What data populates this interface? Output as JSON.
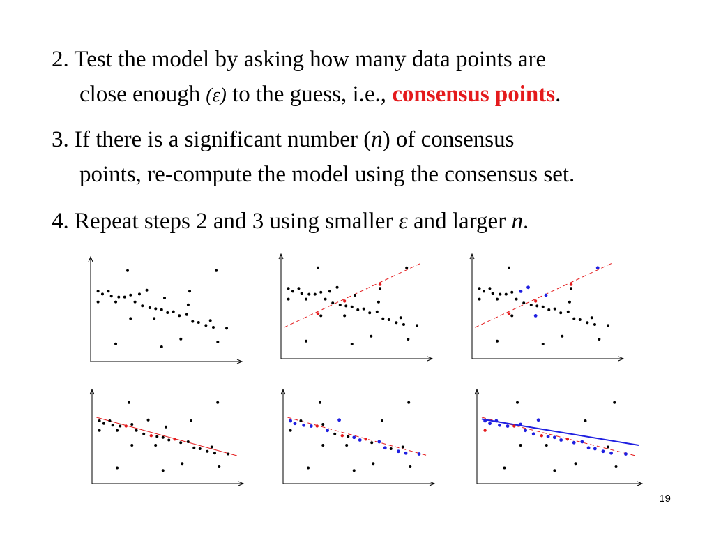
{
  "steps": [
    {
      "line1": "2. Test the model by asking how many data  points  are",
      "line2_a": "close enough",
      "line2_eps": "(ε)",
      "line2_b": " to the guess, i.e., ",
      "line2_red": "consensus points",
      "line2_c": "."
    },
    {
      "line1_a": "3. If there is a significant number (",
      "line1_n": "n",
      "line1_b": ") of consensus",
      "line2": "points, re-compute the model using the consensus set."
    },
    {
      "line1_a": "4. Repeat steps 2 and 3 using smaller ",
      "line1_eps": "ε",
      "line1_b": " and larger ",
      "line1_n": "n",
      "line1_c": "."
    }
  ],
  "colors": {
    "black": "#000000",
    "consensus_red": "#e41a1c",
    "inlier_blue": "#1f1fe0"
  },
  "page_number": "19",
  "chart_data": [
    {
      "type": "scatter",
      "panel": "data only",
      "points": [
        [
          0.25,
          0.93
        ],
        [
          0.85,
          0.93
        ],
        [
          0.05,
          0.72
        ],
        [
          0.08,
          0.69
        ],
        [
          0.12,
          0.72
        ],
        [
          0.14,
          0.67
        ],
        [
          0.19,
          0.66
        ],
        [
          0.23,
          0.66
        ],
        [
          0.27,
          0.68
        ],
        [
          0.3,
          0.61
        ],
        [
          0.33,
          0.69
        ],
        [
          0.35,
          0.57
        ],
        [
          0.38,
          0.73
        ],
        [
          0.4,
          0.55
        ],
        [
          0.44,
          0.54
        ],
        [
          0.48,
          0.53
        ],
        [
          0.52,
          0.5
        ],
        [
          0.56,
          0.51
        ],
        [
          0.6,
          0.47
        ],
        [
          0.65,
          0.48
        ],
        [
          0.67,
          0.72
        ],
        [
          0.69,
          0.41
        ],
        [
          0.73,
          0.4
        ],
        [
          0.78,
          0.37
        ],
        [
          0.81,
          0.42
        ],
        [
          0.83,
          0.35
        ],
        [
          0.86,
          0.2
        ],
        [
          0.92,
          0.34
        ],
        [
          0.05,
          0.61
        ],
        [
          0.17,
          0.61
        ],
        [
          0.27,
          0.44
        ],
        [
          0.43,
          0.44
        ],
        [
          0.5,
          0.65
        ],
        [
          0.66,
          0.58
        ],
        [
          0.61,
          0.23
        ],
        [
          0.17,
          0.18
        ],
        [
          0.48,
          0.15
        ]
      ],
      "lines": []
    },
    {
      "type": "scatter",
      "panel": "random line guess",
      "points": [
        [
          0.25,
          0.93
        ],
        [
          0.85,
          0.93
        ],
        [
          0.05,
          0.72
        ],
        [
          0.08,
          0.69
        ],
        [
          0.12,
          0.72
        ],
        [
          0.14,
          0.67
        ],
        [
          0.19,
          0.66
        ],
        [
          0.23,
          0.66
        ],
        [
          0.27,
          0.68
        ],
        [
          0.3,
          0.61
        ],
        [
          0.33,
          0.69
        ],
        [
          0.35,
          0.57
        ],
        [
          0.38,
          0.73
        ],
        [
          0.4,
          0.55
        ],
        [
          0.44,
          0.54
        ],
        [
          0.48,
          0.53
        ],
        [
          0.52,
          0.5
        ],
        [
          0.56,
          0.51
        ],
        [
          0.6,
          0.47
        ],
        [
          0.65,
          0.48
        ],
        [
          0.67,
          0.72
        ],
        [
          0.69,
          0.41
        ],
        [
          0.73,
          0.4
        ],
        [
          0.78,
          0.37
        ],
        [
          0.81,
          0.42
        ],
        [
          0.83,
          0.35
        ],
        [
          0.86,
          0.2
        ],
        [
          0.92,
          0.34
        ],
        [
          0.05,
          0.61
        ],
        [
          0.17,
          0.61
        ],
        [
          0.27,
          0.44
        ],
        [
          0.43,
          0.44
        ],
        [
          0.5,
          0.65
        ],
        [
          0.66,
          0.58
        ],
        [
          0.61,
          0.23
        ],
        [
          0.17,
          0.18
        ],
        [
          0.48,
          0.15
        ]
      ],
      "red_points": [
        [
          0.25,
          0.46
        ],
        [
          0.43,
          0.59
        ],
        [
          0.67,
          0.76
        ]
      ],
      "lines": [
        {
          "style": "red-dashed",
          "from": [
            0.02,
            0.32
          ],
          "to": [
            0.95,
            0.98
          ]
        }
      ]
    },
    {
      "type": "scatter",
      "panel": "consensus points highlighted",
      "points": [
        [
          0.25,
          0.93
        ],
        [
          0.05,
          0.72
        ],
        [
          0.08,
          0.69
        ],
        [
          0.12,
          0.72
        ],
        [
          0.14,
          0.67
        ],
        [
          0.19,
          0.66
        ],
        [
          0.23,
          0.66
        ],
        [
          0.27,
          0.68
        ],
        [
          0.3,
          0.61
        ],
        [
          0.35,
          0.57
        ],
        [
          0.4,
          0.55
        ],
        [
          0.44,
          0.54
        ],
        [
          0.48,
          0.53
        ],
        [
          0.52,
          0.5
        ],
        [
          0.56,
          0.51
        ],
        [
          0.6,
          0.47
        ],
        [
          0.65,
          0.48
        ],
        [
          0.67,
          0.72
        ],
        [
          0.69,
          0.41
        ],
        [
          0.73,
          0.4
        ],
        [
          0.78,
          0.37
        ],
        [
          0.81,
          0.42
        ],
        [
          0.83,
          0.35
        ],
        [
          0.86,
          0.2
        ],
        [
          0.92,
          0.34
        ],
        [
          0.05,
          0.61
        ],
        [
          0.17,
          0.61
        ],
        [
          0.27,
          0.44
        ],
        [
          0.66,
          0.58
        ],
        [
          0.61,
          0.23
        ],
        [
          0.17,
          0.18
        ],
        [
          0.48,
          0.15
        ]
      ],
      "red_points": [
        [
          0.25,
          0.46
        ],
        [
          0.43,
          0.59
        ],
        [
          0.67,
          0.76
        ]
      ],
      "blue_points": [
        [
          0.38,
          0.73
        ],
        [
          0.33,
          0.69
        ],
        [
          0.5,
          0.65
        ],
        [
          0.43,
          0.44
        ],
        [
          0.85,
          0.93
        ]
      ],
      "lines": [
        {
          "style": "red-dashed",
          "from": [
            0.02,
            0.32
          ],
          "to": [
            0.95,
            0.98
          ]
        }
      ]
    },
    {
      "type": "scatter",
      "panel": "re-fitted line guess",
      "points": [
        [
          0.25,
          0.93
        ],
        [
          0.85,
          0.93
        ],
        [
          0.05,
          0.72
        ],
        [
          0.08,
          0.69
        ],
        [
          0.12,
          0.72
        ],
        [
          0.14,
          0.67
        ],
        [
          0.19,
          0.66
        ],
        [
          0.27,
          0.68
        ],
        [
          0.3,
          0.61
        ],
        [
          0.35,
          0.57
        ],
        [
          0.38,
          0.73
        ],
        [
          0.44,
          0.54
        ],
        [
          0.48,
          0.53
        ],
        [
          0.52,
          0.5
        ],
        [
          0.6,
          0.47
        ],
        [
          0.65,
          0.48
        ],
        [
          0.67,
          0.72
        ],
        [
          0.69,
          0.41
        ],
        [
          0.73,
          0.4
        ],
        [
          0.78,
          0.37
        ],
        [
          0.81,
          0.42
        ],
        [
          0.83,
          0.35
        ],
        [
          0.86,
          0.2
        ],
        [
          0.92,
          0.34
        ],
        [
          0.05,
          0.61
        ],
        [
          0.17,
          0.61
        ],
        [
          0.27,
          0.44
        ],
        [
          0.43,
          0.44
        ],
        [
          0.5,
          0.65
        ],
        [
          0.61,
          0.23
        ],
        [
          0.17,
          0.18
        ],
        [
          0.48,
          0.15
        ]
      ],
      "red_points": [
        [
          0.23,
          0.66
        ],
        [
          0.56,
          0.51
        ],
        [
          0.4,
          0.55
        ]
      ],
      "lines": [
        {
          "style": "red-solid",
          "from": [
            0.03,
            0.76
          ],
          "to": [
            0.98,
            0.32
          ]
        }
      ]
    },
    {
      "type": "scatter",
      "panel": "consensus points on new guess",
      "points": [
        [
          0.25,
          0.93
        ],
        [
          0.85,
          0.93
        ],
        [
          0.12,
          0.72
        ],
        [
          0.27,
          0.68
        ],
        [
          0.35,
          0.57
        ],
        [
          0.44,
          0.54
        ],
        [
          0.6,
          0.47
        ],
        [
          0.67,
          0.72
        ],
        [
          0.73,
          0.4
        ],
        [
          0.81,
          0.42
        ],
        [
          0.86,
          0.2
        ],
        [
          0.05,
          0.61
        ],
        [
          0.27,
          0.44
        ],
        [
          0.43,
          0.44
        ],
        [
          0.61,
          0.23
        ],
        [
          0.17,
          0.18
        ],
        [
          0.48,
          0.15
        ]
      ],
      "red_points": [
        [
          0.23,
          0.66
        ],
        [
          0.56,
          0.51
        ],
        [
          0.4,
          0.55
        ]
      ],
      "blue_points": [
        [
          0.05,
          0.72
        ],
        [
          0.08,
          0.69
        ],
        [
          0.14,
          0.67
        ],
        [
          0.19,
          0.66
        ],
        [
          0.3,
          0.61
        ],
        [
          0.38,
          0.73
        ],
        [
          0.48,
          0.53
        ],
        [
          0.52,
          0.5
        ],
        [
          0.65,
          0.48
        ],
        [
          0.69,
          0.41
        ],
        [
          0.78,
          0.37
        ],
        [
          0.83,
          0.35
        ],
        [
          0.92,
          0.34
        ]
      ],
      "lines": [
        {
          "style": "red-dashed",
          "from": [
            0.03,
            0.76
          ],
          "to": [
            0.98,
            0.32
          ]
        }
      ]
    },
    {
      "type": "scatter",
      "panel": "final re-computed model",
      "points": [
        [
          0.25,
          0.93
        ],
        [
          0.85,
          0.93
        ],
        [
          0.27,
          0.44
        ],
        [
          0.43,
          0.44
        ],
        [
          0.61,
          0.23
        ],
        [
          0.17,
          0.18
        ],
        [
          0.48,
          0.15
        ],
        [
          0.86,
          0.2
        ],
        [
          0.81,
          0.42
        ],
        [
          0.67,
          0.72
        ]
      ],
      "red_points": [
        [
          0.05,
          0.61
        ],
        [
          0.23,
          0.66
        ],
        [
          0.56,
          0.51
        ],
        [
          0.4,
          0.55
        ]
      ],
      "blue_points": [
        [
          0.05,
          0.72
        ],
        [
          0.08,
          0.69
        ],
        [
          0.12,
          0.72
        ],
        [
          0.14,
          0.67
        ],
        [
          0.19,
          0.66
        ],
        [
          0.27,
          0.68
        ],
        [
          0.3,
          0.61
        ],
        [
          0.35,
          0.57
        ],
        [
          0.38,
          0.73
        ],
        [
          0.44,
          0.54
        ],
        [
          0.48,
          0.53
        ],
        [
          0.52,
          0.5
        ],
        [
          0.6,
          0.47
        ],
        [
          0.65,
          0.48
        ],
        [
          0.69,
          0.41
        ],
        [
          0.73,
          0.4
        ],
        [
          0.78,
          0.37
        ],
        [
          0.83,
          0.35
        ],
        [
          0.92,
          0.34
        ]
      ],
      "lines": [
        {
          "style": "red-dashed",
          "from": [
            0.03,
            0.76
          ],
          "to": [
            0.98,
            0.32
          ]
        },
        {
          "style": "blue-solid",
          "from": [
            0.03,
            0.74
          ],
          "to": [
            1.0,
            0.44
          ]
        }
      ]
    }
  ]
}
